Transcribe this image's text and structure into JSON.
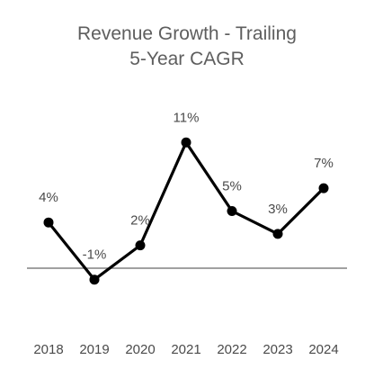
{
  "chart_data": {
    "type": "line",
    "title": [
      "Revenue Growth - Trailing",
      "5-Year CAGR"
    ],
    "categories": [
      "2018",
      "2019",
      "2020",
      "2021",
      "2022",
      "2023",
      "2024"
    ],
    "values": [
      4,
      -1,
      2,
      11,
      5,
      3,
      7
    ],
    "data_labels": [
      "4%",
      "-1%",
      "2%",
      "11%",
      "5%",
      "3%",
      "7%"
    ],
    "value_unit": "%",
    "ylim": [
      -3,
      13
    ],
    "grid": false,
    "zero_line": true,
    "colors": {
      "line": "#000000",
      "zero_line": "#808080",
      "title": "#5e5e5e",
      "labels": "#4a4a4a"
    }
  }
}
